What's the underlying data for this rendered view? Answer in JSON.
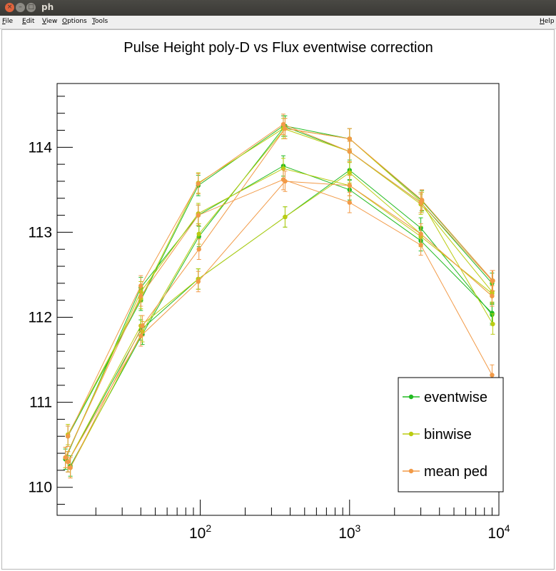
{
  "window": {
    "title": "ph",
    "buttons": [
      "×",
      "–",
      "□"
    ]
  },
  "menu": {
    "file": "File",
    "edit": "Edit",
    "view": "View",
    "options": "Options",
    "tools": "Tools",
    "help": "Help"
  },
  "chart_data": {
    "type": "line",
    "title": "Pulse Height poly-D vs Flux eventwise correction",
    "xlabel": "",
    "ylabel": "",
    "xscale": "log",
    "xlim": [
      11,
      10000
    ],
    "ylim": [
      109.67,
      114.75
    ],
    "yticks": [
      110,
      111,
      112,
      113,
      114
    ],
    "yticklabels": [
      "110",
      "111",
      "112",
      "113",
      "114"
    ],
    "xticks": [
      100,
      1000,
      10000
    ],
    "xticklabels": [
      {
        "base": "10",
        "exp": "2"
      },
      {
        "base": "10",
        "exp": "3"
      },
      {
        "base": "10",
        "exp": "4"
      }
    ],
    "legend_position": "bottom-right",
    "grid": false,
    "series": [
      {
        "name": "eventwise",
        "color": "#22bb22",
        "runs": [
          {
            "x": [
              13,
              40,
              97,
              360,
              1000,
              3000,
              9000
            ],
            "y": [
              110.6,
              112.2,
              113.55,
              114.25,
              113.95,
              113.35,
              112.4
            ]
          },
          {
            "x": [
              12.5,
              40,
              97,
              360,
              1000,
              3000,
              9000
            ],
            "y": [
              110.33,
              112.35,
              113.2,
              113.78,
              113.5,
              112.9,
              112.05
            ]
          },
          {
            "x": [
              13.5,
              41,
              98,
              370,
              1000,
              3050,
              9100
            ],
            "y": [
              110.25,
              111.8,
              112.95,
              114.25,
              114.1,
              113.37,
              112.43
            ]
          },
          {
            "x": [
              13,
              40,
              97,
              370,
              1000,
              3000,
              9000
            ],
            "y": [
              110.3,
              111.85,
              112.45,
              113.18,
              113.73,
              113.05,
              112.03
            ]
          }
        ]
      },
      {
        "name": "binwise",
        "color": "#bbcc11",
        "runs": [
          {
            "x": [
              13,
              40,
              97,
              360,
              1000,
              3000,
              9000
            ],
            "y": [
              110.62,
              112.22,
              113.58,
              114.22,
              113.95,
              113.33,
              112.3
            ]
          },
          {
            "x": [
              12.5,
              40,
              97,
              360,
              1000,
              3000,
              9000
            ],
            "y": [
              110.35,
              112.3,
              113.22,
              113.75,
              113.55,
              112.95,
              112.28
            ]
          },
          {
            "x": [
              13.5,
              41,
              98,
              370,
              1000,
              3050,
              9100
            ],
            "y": [
              110.23,
              111.83,
              112.98,
              114.22,
              114.1,
              113.35,
              111.92
            ]
          },
          {
            "x": [
              13,
              40,
              97,
              370,
              1000,
              3000,
              9000
            ],
            "y": [
              110.3,
              111.9,
              112.45,
              113.18,
              113.7,
              112.98,
              112.25
            ]
          }
        ]
      },
      {
        "name": "mean ped",
        "color": "#f29a47",
        "runs": [
          {
            "x": [
              13,
              40,
              97,
              360,
              1000,
              3000,
              9000
            ],
            "y": [
              110.6,
              112.37,
              113.57,
              114.27,
              113.95,
              113.35,
              112.43
            ]
          },
          {
            "x": [
              12.5,
              40,
              97,
              360,
              1000,
              3000,
              9000
            ],
            "y": [
              110.35,
              112.25,
              113.2,
              113.62,
              113.35,
              112.85,
              111.32
            ]
          },
          {
            "x": [
              13.5,
              41,
              98,
              370,
              1000,
              3050,
              9100
            ],
            "y": [
              110.23,
              111.9,
              112.8,
              114.22,
              114.1,
              113.38,
              112.43
            ]
          },
          {
            "x": [
              13,
              40,
              97,
              370,
              1000,
              3000,
              9000
            ],
            "y": [
              110.3,
              111.78,
              112.42,
              113.6,
              113.55,
              112.98,
              112.25
            ]
          }
        ]
      }
    ],
    "error": 0.12
  }
}
